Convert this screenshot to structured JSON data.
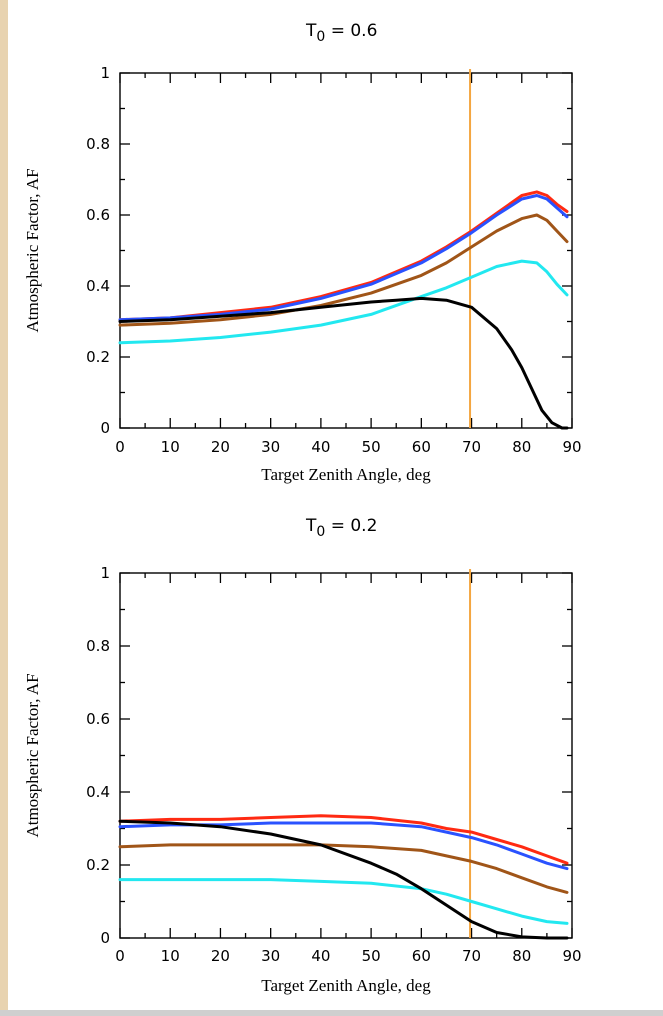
{
  "chart_data": [
    {
      "type": "line",
      "title_main": "T",
      "title_sub": "0",
      "title_rest": " = 0.6",
      "xlabel": "Target Zenith Angle, deg",
      "ylabel": "Atmospheric Factor, AF",
      "xlim": [
        0,
        90
      ],
      "ylim": [
        0,
        1
      ],
      "xticks": [
        "0",
        "10",
        "20",
        "30",
        "40",
        "50",
        "60",
        "70",
        "80",
        "90"
      ],
      "yticks": [
        "0",
        "0.2",
        "0.4",
        "0.6",
        "0.8",
        "1"
      ],
      "vline": {
        "x": 69.7,
        "color": "#f4a640"
      },
      "series": [
        {
          "color": "#ff2a12",
          "x": [
            0,
            10,
            20,
            30,
            40,
            50,
            60,
            65,
            70,
            75,
            80,
            83,
            85,
            87,
            89
          ],
          "y": [
            0.305,
            0.31,
            0.325,
            0.34,
            0.37,
            0.41,
            0.47,
            0.51,
            0.555,
            0.605,
            0.655,
            0.665,
            0.655,
            0.63,
            0.61
          ]
        },
        {
          "color": "#2a52ff",
          "x": [
            0,
            10,
            20,
            30,
            40,
            50,
            60,
            65,
            70,
            75,
            80,
            83,
            85,
            87,
            89
          ],
          "y": [
            0.305,
            0.31,
            0.32,
            0.335,
            0.365,
            0.405,
            0.465,
            0.505,
            0.55,
            0.6,
            0.645,
            0.655,
            0.645,
            0.62,
            0.595
          ]
        },
        {
          "color": "#a05518",
          "x": [
            0,
            10,
            20,
            30,
            40,
            50,
            60,
            65,
            70,
            75,
            80,
            83,
            85,
            87,
            89
          ],
          "y": [
            0.29,
            0.295,
            0.305,
            0.32,
            0.345,
            0.38,
            0.43,
            0.465,
            0.51,
            0.555,
            0.59,
            0.6,
            0.585,
            0.555,
            0.525
          ]
        },
        {
          "color": "#22e8f0",
          "x": [
            0,
            10,
            20,
            30,
            40,
            50,
            60,
            65,
            70,
            75,
            80,
            83,
            85,
            87,
            89
          ],
          "y": [
            0.24,
            0.245,
            0.255,
            0.27,
            0.29,
            0.32,
            0.37,
            0.395,
            0.425,
            0.455,
            0.47,
            0.465,
            0.44,
            0.405,
            0.375
          ]
        },
        {
          "color": "#000000",
          "x": [
            0,
            10,
            20,
            30,
            40,
            50,
            55,
            60,
            65,
            70,
            75,
            78,
            80,
            82,
            84,
            86,
            88,
            89
          ],
          "y": [
            0.3,
            0.305,
            0.315,
            0.325,
            0.34,
            0.355,
            0.36,
            0.365,
            0.36,
            0.34,
            0.28,
            0.22,
            0.17,
            0.11,
            0.05,
            0.015,
            0.0,
            0.0
          ]
        }
      ]
    },
    {
      "type": "line",
      "title_main": "T",
      "title_sub": "0",
      "title_rest": " = 0.2",
      "xlabel": "Target Zenith Angle, deg",
      "ylabel": "Atmospheric Factor, AF",
      "xlim": [
        0,
        90
      ],
      "ylim": [
        0,
        1
      ],
      "xticks": [
        "0",
        "10",
        "20",
        "30",
        "40",
        "50",
        "60",
        "70",
        "80",
        "90"
      ],
      "yticks": [
        "0",
        "0.2",
        "0.4",
        "0.6",
        "0.8",
        "1"
      ],
      "vline": {
        "x": 69.7,
        "color": "#f4a640"
      },
      "series": [
        {
          "color": "#ff2a12",
          "x": [
            0,
            10,
            20,
            30,
            40,
            50,
            60,
            65,
            70,
            75,
            80,
            85,
            89
          ],
          "y": [
            0.32,
            0.325,
            0.325,
            0.33,
            0.335,
            0.33,
            0.315,
            0.3,
            0.29,
            0.27,
            0.25,
            0.225,
            0.205
          ]
        },
        {
          "color": "#2a52ff",
          "x": [
            0,
            10,
            20,
            30,
            40,
            50,
            60,
            65,
            70,
            75,
            80,
            85,
            89
          ],
          "y": [
            0.305,
            0.31,
            0.31,
            0.315,
            0.315,
            0.315,
            0.305,
            0.29,
            0.275,
            0.255,
            0.23,
            0.205,
            0.19
          ]
        },
        {
          "color": "#a05518",
          "x": [
            0,
            10,
            20,
            30,
            40,
            50,
            60,
            65,
            70,
            75,
            80,
            85,
            89
          ],
          "y": [
            0.25,
            0.255,
            0.255,
            0.255,
            0.255,
            0.25,
            0.24,
            0.225,
            0.21,
            0.19,
            0.165,
            0.14,
            0.125
          ]
        },
        {
          "color": "#22e8f0",
          "x": [
            0,
            10,
            20,
            30,
            40,
            50,
            60,
            65,
            70,
            75,
            80,
            85,
            89
          ],
          "y": [
            0.16,
            0.16,
            0.16,
            0.16,
            0.155,
            0.15,
            0.135,
            0.12,
            0.1,
            0.08,
            0.06,
            0.045,
            0.04
          ]
        },
        {
          "color": "#000000",
          "x": [
            0,
            10,
            20,
            30,
            40,
            50,
            55,
            60,
            65,
            70,
            75,
            80,
            85,
            89
          ],
          "y": [
            0.32,
            0.315,
            0.305,
            0.285,
            0.255,
            0.205,
            0.175,
            0.135,
            0.09,
            0.045,
            0.015,
            0.003,
            0.0,
            0.0
          ]
        }
      ]
    }
  ]
}
